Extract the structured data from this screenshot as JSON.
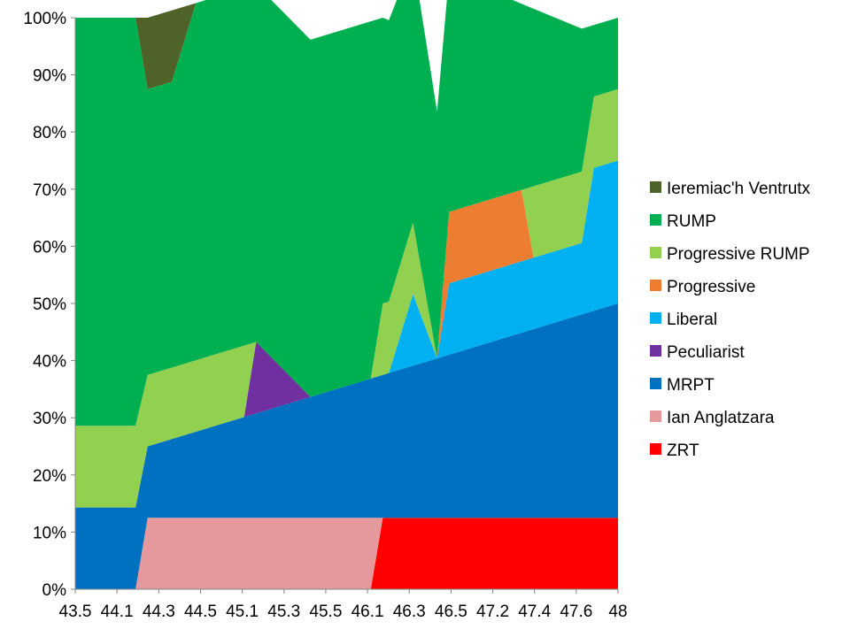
{
  "chart_data": {
    "type": "area",
    "stacked": true,
    "percent": true,
    "x": [
      "43.5",
      "44.1",
      "44.3",
      "44.5",
      "45.1",
      "45.3",
      "45.5",
      "46.1",
      "46.3",
      "46.5",
      "47.2",
      "47.4",
      "47.6",
      "48"
    ],
    "x_ticks": [
      "43.5",
      "44.1",
      "44.3",
      "44.5",
      "45.1",
      "45.3",
      "45.5",
      "46.1",
      "46.3",
      "46.5",
      "47.2",
      "47.4",
      "47.6",
      "48"
    ],
    "y_ticks": [
      "0%",
      "10%",
      "20%",
      "30%",
      "40%",
      "50%",
      "60%",
      "70%",
      "80%",
      "90%",
      "100%"
    ],
    "ylim": [
      0,
      100
    ],
    "grid": false,
    "legend_position": "right",
    "series": [
      {
        "name": "ZRT",
        "color": "#FF0000",
        "values": [
          [
            43.5,
            0
          ],
          [
            44.0,
            0
          ],
          [
            45.95,
            0
          ],
          [
            46.05,
            12.5
          ],
          [
            48,
            12.5
          ]
        ]
      },
      {
        "name": "Ian Anglatzara",
        "color": "#E6999C",
        "values": [
          [
            43.5,
            0
          ],
          [
            44.0,
            0
          ],
          [
            44.1,
            12.5
          ],
          [
            45.95,
            12.5
          ],
          [
            46.05,
            0
          ],
          [
            48,
            0
          ]
        ]
      },
      {
        "name": "MRPT",
        "color": "#0070C0",
        "values": [
          [
            43.5,
            14.3
          ],
          [
            44.0,
            14.3
          ],
          [
            44.1,
            12.5
          ],
          [
            46.05,
            25
          ],
          [
            48,
            37.5
          ]
        ]
      },
      {
        "name": "Peculiarist",
        "color": "#7030A0",
        "values": [
          [
            43.5,
            0
          ],
          [
            44.9,
            0
          ],
          [
            45.0,
            12.5
          ],
          [
            45.45,
            0
          ],
          [
            48,
            0
          ]
        ]
      },
      {
        "name": "Liberal",
        "color": "#00B0F0",
        "values": [
          [
            43.5,
            0
          ],
          [
            46.1,
            0
          ],
          [
            46.3,
            12.5
          ],
          [
            46.5,
            0
          ],
          [
            46.6,
            12.5
          ],
          [
            47.7,
            12.5
          ],
          [
            47.8,
            25
          ],
          [
            48,
            25
          ]
        ]
      },
      {
        "name": "Progressive",
        "color": "#ED7D31",
        "values": [
          [
            43.5,
            0
          ],
          [
            46.5,
            0
          ],
          [
            46.6,
            12.5
          ],
          [
            47.2,
            12.5
          ],
          [
            47.3,
            0
          ],
          [
            48,
            0
          ]
        ]
      },
      {
        "name": "Progressive RUMP",
        "color": "#92D050",
        "values": [
          [
            43.5,
            14.3
          ],
          [
            44.0,
            14.3
          ],
          [
            44.1,
            12.5
          ],
          [
            44.9,
            12.5
          ],
          [
            45.0,
            0
          ],
          [
            45.95,
            0
          ],
          [
            46.05,
            12.5
          ],
          [
            46.3,
            12.5
          ],
          [
            46.5,
            0
          ],
          [
            47.2,
            0
          ],
          [
            47.3,
            12.5
          ],
          [
            47.7,
            12.5
          ],
          [
            47.8,
            12.5
          ],
          [
            48,
            12.5
          ]
        ]
      },
      {
        "name": "RUMP",
        "color": "#00B050",
        "values": [
          [
            43.5,
            71.4
          ],
          [
            44.0,
            71.4
          ],
          [
            44.1,
            50
          ],
          [
            44.3,
            50
          ],
          [
            44.5,
            62.5
          ],
          [
            45.95,
            62.5
          ],
          [
            46.05,
            50
          ],
          [
            47.7,
            25
          ],
          [
            47.8,
            12.5
          ],
          [
            48,
            12.5
          ]
        ]
      },
      {
        "name": "Ieremiac'h Ventrutx",
        "color": "#4F6228",
        "values": [
          [
            43.5,
            0
          ],
          [
            44.0,
            0
          ],
          [
            44.1,
            12.5
          ],
          [
            44.3,
            12.5
          ],
          [
            44.5,
            0
          ],
          [
            48,
            0
          ]
        ]
      }
    ]
  }
}
